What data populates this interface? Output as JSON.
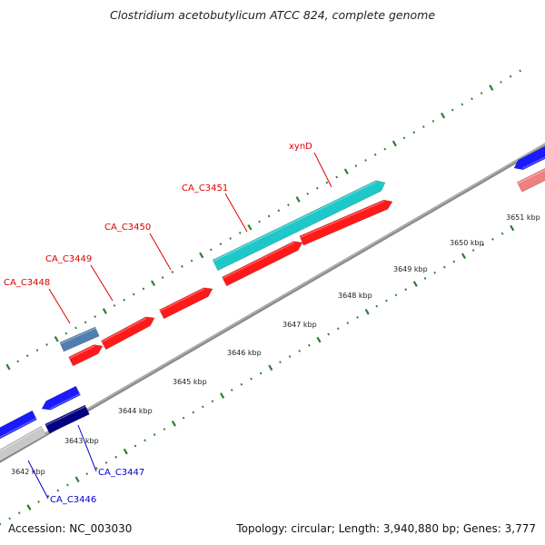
{
  "title": "Clostridium acetobutylicum ATCC 824, complete genome",
  "footer": {
    "accession": "Accession: NC_003030",
    "stats": "Topology: circular; Length: 3,940,880 bp; Genes: 3,777"
  },
  "colors": {
    "backbone": "#8c8c8c",
    "tick": "#2e7d2e",
    "label_forward": "#dd0000",
    "label_reverse": "#0000cc",
    "forward_gene": "#ff1a1a",
    "teal_gene": "#1fc8c8",
    "steel_gene": "#4f7fb0",
    "blue_gene": "#1a1aff",
    "navy_gene": "#000080",
    "gray_gene": "#c8c8c8",
    "pink_gene": "#f08080"
  },
  "scale": {
    "unit": "kbp",
    "ticks": [
      {
        "kbp": 3642,
        "label": "3642 kbp"
      },
      {
        "kbp": 3643,
        "label": "3643 kbp"
      },
      {
        "kbp": 3644,
        "label": "3644 kbp"
      },
      {
        "kbp": 3645,
        "label": "3645 kbp"
      },
      {
        "kbp": 3646,
        "label": "3646 kbp"
      },
      {
        "kbp": 3647,
        "label": "3647 kbp"
      },
      {
        "kbp": 3648,
        "label": "3648 kbp"
      },
      {
        "kbp": 3649,
        "label": "3649 kbp"
      },
      {
        "kbp": 3650,
        "label": "3650 kbp"
      },
      {
        "kbp": 3651,
        "label": "3651 kbp"
      }
    ]
  },
  "gene_labels": [
    {
      "id": "xynD",
      "text": "xynD",
      "strand": "forward"
    },
    {
      "id": "CA_C3451",
      "text": "CA_C3451",
      "strand": "forward"
    },
    {
      "id": "CA_C3450",
      "text": "CA_C3450",
      "strand": "forward"
    },
    {
      "id": "CA_C3449",
      "text": "CA_C3449",
      "strand": "forward"
    },
    {
      "id": "CA_C3448",
      "text": "CA_C3448",
      "strand": "forward"
    },
    {
      "id": "CA_C3447",
      "text": "CA_C3447",
      "strand": "reverse"
    },
    {
      "id": "CA_C3446",
      "text": "CA_C3446",
      "strand": "reverse"
    }
  ]
}
